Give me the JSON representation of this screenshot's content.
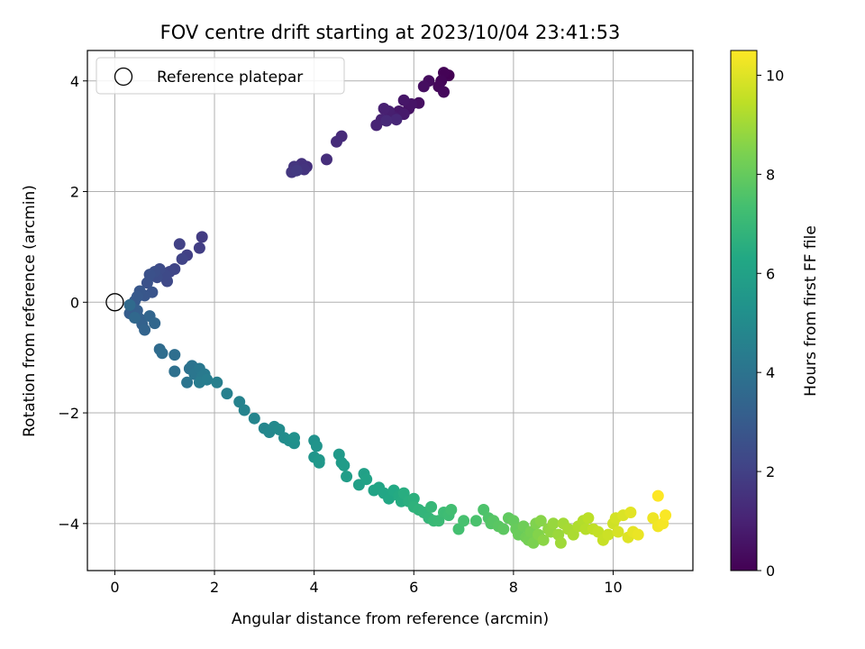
{
  "chart_data": {
    "type": "scatter",
    "title": "FOV centre drift starting at 2023/10/04 23:41:53",
    "xlabel": "Angular distance from reference (arcmin)",
    "ylabel": "Rotation from reference (arcmin)",
    "xlim": [
      -0.55,
      11.6
    ],
    "ylim": [
      -4.85,
      4.55
    ],
    "xticks": [
      0,
      2,
      4,
      6,
      8,
      10
    ],
    "yticks": [
      -4,
      -2,
      0,
      2,
      4
    ],
    "grid": true,
    "legend_placement": "top-left",
    "reference": {
      "label": "Reference platepar",
      "x": 0,
      "y": 0
    },
    "colorbar": {
      "label": "Hours from first FF file",
      "colormap": "viridis",
      "range": [
        0,
        10.5
      ],
      "ticks": [
        0,
        2,
        4,
        6,
        8,
        10
      ]
    },
    "series": [
      {
        "points": [
          [
            6.7,
            4.1
          ],
          [
            6.6,
            4.15
          ],
          [
            6.55,
            4.0
          ],
          [
            6.5,
            3.9
          ],
          [
            6.6,
            3.8
          ],
          [
            6.3,
            4.0
          ],
          [
            6.2,
            3.9
          ],
          [
            6.1,
            3.6
          ],
          [
            5.9,
            3.5
          ],
          [
            5.95,
            3.58
          ],
          [
            5.8,
            3.65
          ],
          [
            5.7,
            3.45
          ],
          [
            5.8,
            3.4
          ],
          [
            5.6,
            3.35
          ],
          [
            5.5,
            3.45
          ],
          [
            5.4,
            3.5
          ],
          [
            5.35,
            3.3
          ],
          [
            5.25,
            3.2
          ],
          [
            5.65,
            3.3
          ],
          [
            5.45,
            3.28
          ],
          [
            4.55,
            3.0
          ],
          [
            4.45,
            2.9
          ],
          [
            4.25,
            2.58
          ],
          [
            3.85,
            2.45
          ],
          [
            3.75,
            2.5
          ],
          [
            3.8,
            2.4
          ],
          [
            3.6,
            2.45
          ],
          [
            3.55,
            2.35
          ],
          [
            3.65,
            2.38
          ],
          [
            1.75,
            1.18
          ],
          [
            1.7,
            0.98
          ],
          [
            1.45,
            0.85
          ],
          [
            1.3,
            1.05
          ],
          [
            1.35,
            0.78
          ],
          [
            1.2,
            0.6
          ],
          [
            1.1,
            0.55
          ],
          [
            1.05,
            0.38
          ],
          [
            1.0,
            0.5
          ],
          [
            0.9,
            0.6
          ],
          [
            0.85,
            0.45
          ],
          [
            0.8,
            0.55
          ],
          [
            0.7,
            0.5
          ],
          [
            0.65,
            0.35
          ],
          [
            0.75,
            0.18
          ],
          [
            0.6,
            0.12
          ],
          [
            0.5,
            0.2
          ],
          [
            0.45,
            0.1
          ],
          [
            0.4,
            0.02
          ],
          [
            0.35,
            -0.1
          ],
          [
            0.3,
            -0.2
          ],
          [
            0.45,
            -0.15
          ],
          [
            0.5,
            -0.3
          ],
          [
            0.55,
            -0.4
          ],
          [
            0.6,
            -0.5
          ],
          [
            0.7,
            -0.25
          ],
          [
            0.8,
            -0.38
          ],
          [
            0.4,
            -0.28
          ],
          [
            0.3,
            -0.05
          ],
          [
            0.9,
            -0.85
          ],
          [
            0.95,
            -0.92
          ],
          [
            1.2,
            -0.95
          ],
          [
            1.2,
            -1.25
          ],
          [
            1.5,
            -1.2
          ],
          [
            1.55,
            -1.15
          ],
          [
            1.45,
            -1.45
          ],
          [
            1.6,
            -1.3
          ],
          [
            1.7,
            -1.2
          ],
          [
            1.75,
            -1.35
          ],
          [
            1.8,
            -1.3
          ],
          [
            1.7,
            -1.45
          ],
          [
            1.85,
            -1.4
          ],
          [
            2.05,
            -1.45
          ],
          [
            2.25,
            -1.65
          ],
          [
            2.5,
            -1.8
          ],
          [
            2.6,
            -1.95
          ],
          [
            2.8,
            -2.1
          ],
          [
            3.0,
            -2.28
          ],
          [
            3.1,
            -2.35
          ],
          [
            3.2,
            -2.25
          ],
          [
            3.3,
            -2.3
          ],
          [
            3.4,
            -2.45
          ],
          [
            3.5,
            -2.5
          ],
          [
            3.6,
            -2.55
          ],
          [
            3.6,
            -2.45
          ],
          [
            4.0,
            -2.5
          ],
          [
            4.05,
            -2.6
          ],
          [
            4.0,
            -2.8
          ],
          [
            4.1,
            -2.85
          ],
          [
            4.1,
            -2.9
          ],
          [
            4.5,
            -2.75
          ],
          [
            4.55,
            -2.9
          ],
          [
            4.6,
            -2.95
          ],
          [
            4.65,
            -3.15
          ],
          [
            4.9,
            -3.3
          ],
          [
            5.0,
            -3.1
          ],
          [
            5.05,
            -3.2
          ],
          [
            5.2,
            -3.4
          ],
          [
            5.3,
            -3.35
          ],
          [
            5.4,
            -3.45
          ],
          [
            5.5,
            -3.55
          ],
          [
            5.6,
            -3.4
          ],
          [
            5.7,
            -3.5
          ],
          [
            5.75,
            -3.6
          ],
          [
            5.8,
            -3.45
          ],
          [
            5.9,
            -3.6
          ],
          [
            6.0,
            -3.55
          ],
          [
            6.0,
            -3.7
          ],
          [
            6.1,
            -3.75
          ],
          [
            6.2,
            -3.8
          ],
          [
            6.3,
            -3.9
          ],
          [
            6.35,
            -3.7
          ],
          [
            6.4,
            -3.95
          ],
          [
            6.5,
            -3.95
          ],
          [
            6.6,
            -3.8
          ],
          [
            6.7,
            -3.85
          ],
          [
            6.75,
            -3.75
          ],
          [
            6.9,
            -4.1
          ],
          [
            7.0,
            -3.95
          ],
          [
            7.25,
            -3.95
          ],
          [
            7.4,
            -3.75
          ],
          [
            7.5,
            -3.9
          ],
          [
            7.55,
            -4.0
          ],
          [
            7.6,
            -3.95
          ],
          [
            7.7,
            -4.05
          ],
          [
            7.8,
            -4.1
          ],
          [
            7.9,
            -3.9
          ],
          [
            8.0,
            -3.95
          ],
          [
            8.05,
            -4.1
          ],
          [
            8.1,
            -4.2
          ],
          [
            8.2,
            -4.05
          ],
          [
            8.25,
            -4.25
          ],
          [
            8.3,
            -4.3
          ],
          [
            8.35,
            -4.15
          ],
          [
            8.4,
            -4.35
          ],
          [
            8.45,
            -4.0
          ],
          [
            8.5,
            -4.2
          ],
          [
            8.55,
            -3.95
          ],
          [
            8.6,
            -4.3
          ],
          [
            8.7,
            -4.1
          ],
          [
            8.75,
            -4.15
          ],
          [
            8.8,
            -4.0
          ],
          [
            8.9,
            -4.2
          ],
          [
            8.95,
            -4.35
          ],
          [
            9.0,
            -4.0
          ],
          [
            9.1,
            -4.1
          ],
          [
            9.2,
            -4.2
          ],
          [
            9.3,
            -4.05
          ],
          [
            9.4,
            -3.95
          ],
          [
            9.45,
            -4.1
          ],
          [
            9.5,
            -3.9
          ],
          [
            9.6,
            -4.1
          ],
          [
            9.7,
            -4.15
          ],
          [
            9.8,
            -4.3
          ],
          [
            9.9,
            -4.2
          ],
          [
            10.0,
            -4.0
          ],
          [
            10.05,
            -3.9
          ],
          [
            10.1,
            -4.15
          ],
          [
            10.2,
            -3.85
          ],
          [
            10.3,
            -4.25
          ],
          [
            10.35,
            -3.8
          ],
          [
            10.4,
            -4.15
          ],
          [
            10.5,
            -4.2
          ],
          [
            10.8,
            -3.9
          ],
          [
            10.9,
            -4.05
          ],
          [
            11.0,
            -4.0
          ],
          [
            11.05,
            -3.85
          ],
          [
            10.9,
            -3.5
          ]
        ]
      }
    ]
  }
}
